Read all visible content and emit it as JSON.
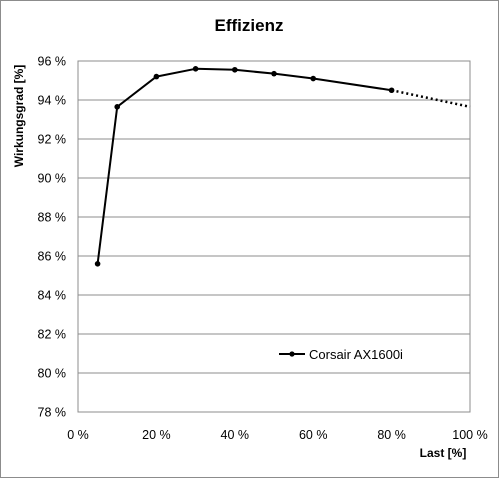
{
  "chart_data": {
    "type": "line",
    "title": "Effizienz",
    "xlabel": "Last [%]",
    "ylabel": "Wirkungsgrad [%]",
    "xlim": [
      0,
      100
    ],
    "ylim": [
      78,
      96
    ],
    "x_ticks": [
      "0 %",
      "20 %",
      "40 %",
      "60 %",
      "80 %",
      "100 %"
    ],
    "y_ticks": [
      "78 %",
      "80 %",
      "82 %",
      "84 %",
      "86 %",
      "88 %",
      "90 %",
      "92 %",
      "94 %",
      "96 %"
    ],
    "x_tick_values": [
      0,
      20,
      40,
      60,
      80,
      100
    ],
    "y_tick_values": [
      78,
      80,
      82,
      84,
      86,
      88,
      90,
      92,
      94,
      96
    ],
    "grid": "horizontal",
    "legend_position": "lower-right",
    "series": [
      {
        "name": "Corsair AX1600i",
        "x": [
          5,
          10,
          20,
          30,
          40,
          50,
          60,
          80
        ],
        "y": [
          85.6,
          93.65,
          95.2,
          95.6,
          95.55,
          95.35,
          95.1,
          94.5
        ],
        "color": "#000000",
        "extrapolation": {
          "x": [
            80,
            100
          ],
          "y": [
            94.5,
            93.65
          ],
          "style": "dotted"
        }
      }
    ]
  }
}
